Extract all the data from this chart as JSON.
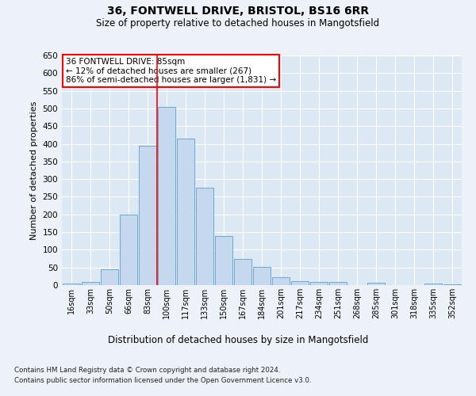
{
  "title1": "36, FONTWELL DRIVE, BRISTOL, BS16 6RR",
  "title2": "Size of property relative to detached houses in Mangotsfield",
  "xlabel": "Distribution of detached houses by size in Mangotsfield",
  "ylabel": "Number of detached properties",
  "bar_labels": [
    "16sqm",
    "33sqm",
    "50sqm",
    "66sqm",
    "83sqm",
    "100sqm",
    "117sqm",
    "133sqm",
    "150sqm",
    "167sqm",
    "184sqm",
    "201sqm",
    "217sqm",
    "234sqm",
    "251sqm",
    "268sqm",
    "285sqm",
    "301sqm",
    "318sqm",
    "335sqm",
    "352sqm"
  ],
  "bar_values": [
    5,
    10,
    45,
    200,
    395,
    505,
    415,
    275,
    138,
    75,
    52,
    22,
    12,
    8,
    8,
    0,
    6,
    0,
    0,
    5,
    3
  ],
  "bar_color": "#c5d8ee",
  "bar_edge_color": "#6aaad4",
  "annotation_box_text": "36 FONTWELL DRIVE: 85sqm\n← 12% of detached houses are smaller (267)\n86% of semi-detached houses are larger (1,831) →",
  "ref_line_x": 4.5,
  "ylim": [
    0,
    650
  ],
  "yticks": [
    0,
    50,
    100,
    150,
    200,
    250,
    300,
    350,
    400,
    450,
    500,
    550,
    600,
    650
  ],
  "footnote1": "Contains HM Land Registry data © Crown copyright and database right 2024.",
  "footnote2": "Contains public sector information licensed under the Open Government Licence v3.0.",
  "bg_color": "#edf2f9",
  "plot_bg_color": "#dde8f5"
}
